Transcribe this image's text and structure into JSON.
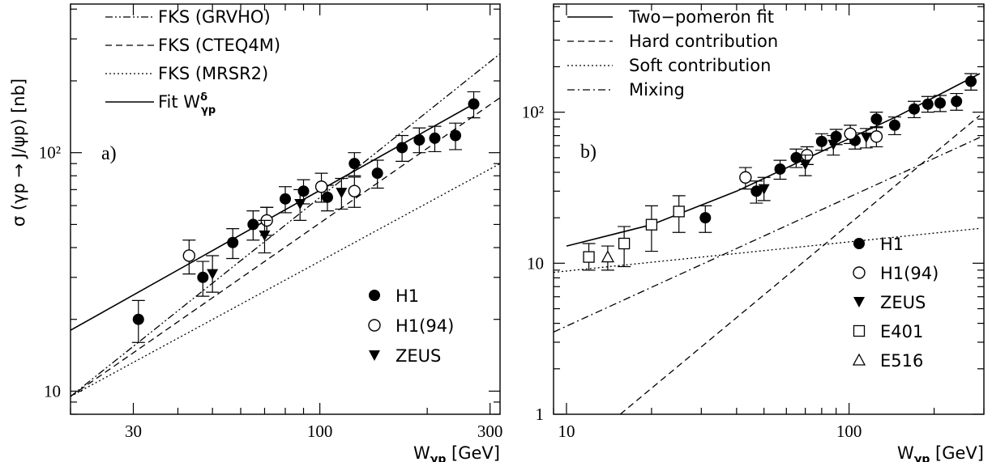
{
  "chart_data": [
    {
      "type": "scatter",
      "panel_label": "a)",
      "xlabel": "W",
      "xlabel_sub": "γp",
      "xlabel_unit": "[GeV]",
      "ylabel": "σ (γp → J/ψp) [nb]",
      "x_scale": "log",
      "y_scale": "log",
      "xlim": [
        20,
        320
      ],
      "ylim": [
        8,
        420
      ],
      "x_ticks": [
        30,
        100,
        300
      ],
      "x_tick_labels": [
        "30",
        "100",
        "300"
      ],
      "y_ticks": [
        10,
        100
      ],
      "y_tick_labels": [
        "10",
        "10²"
      ],
      "legend_position": "top-left and bottom-right",
      "curve_legend": [
        {
          "key": "grv",
          "label": "FKS (GRVHO)",
          "style": "dash-dot-dot"
        },
        {
          "key": "cteq",
          "label": "FKS (CTEQ4M)",
          "style": "dashed"
        },
        {
          "key": "mrs",
          "label": "FKS (MRSR2)",
          "style": "dotted"
        },
        {
          "key": "fit",
          "label": "Fit W",
          "sup": "δ",
          "sub": "γp",
          "style": "solid"
        }
      ],
      "curves": [
        {
          "key": "fit",
          "style": "solid",
          "points": [
            [
              20,
              18
            ],
            [
              270,
              160
            ]
          ]
        },
        {
          "key": "grv",
          "style": "dash-dot-dot",
          "points": [
            [
              20,
              9.5
            ],
            [
              320,
              260
            ]
          ]
        },
        {
          "key": "cteq",
          "style": "dashed",
          "points": [
            [
              20,
              9.5
            ],
            [
              320,
              170
            ]
          ]
        },
        {
          "key": "mrs",
          "style": "dotted",
          "points": [
            [
              20,
              9.5
            ],
            [
              320,
              90
            ]
          ]
        }
      ],
      "marker_legend": [
        {
          "label": "H1",
          "marker": "filled-circle"
        },
        {
          "label": "H1(94)",
          "marker": "open-circle"
        },
        {
          "label": "ZEUS",
          "marker": "filled-triangle-down"
        }
      ],
      "series": [
        {
          "name": "H1",
          "marker": "filled-circle",
          "points": [
            [
              31,
              20,
              16,
              24
            ],
            [
              47,
              30,
              25,
              35
            ],
            [
              57,
              42,
              36,
              48
            ],
            [
              65,
              50,
              43,
              57
            ],
            [
              71,
              52,
              45,
              59
            ],
            [
              80,
              64,
              56,
              72
            ],
            [
              90,
              69,
              61,
              77
            ],
            [
              105,
              65,
              57,
              73
            ],
            [
              125,
              90,
              80,
              100
            ],
            [
              145,
              82,
              71,
              93
            ],
            [
              170,
              105,
              92,
              118
            ],
            [
              190,
              113,
              100,
              127
            ],
            [
              210,
              115,
              101,
              129
            ],
            [
              240,
              118,
              103,
              133
            ],
            [
              270,
              160,
              140,
              180
            ]
          ]
        },
        {
          "name": "H1(94)",
          "marker": "open-circle",
          "points": [
            [
              43,
              37,
              31,
              43
            ],
            [
              71,
              52,
              45,
              59
            ],
            [
              101,
              72,
              62,
              82
            ],
            [
              125,
              69,
              59,
              79
            ]
          ]
        },
        {
          "name": "ZEUS",
          "marker": "filled-triangle-down",
          "points": [
            [
              50,
              31,
              26,
              37
            ],
            [
              70,
              45,
              38,
              52
            ],
            [
              88,
              61,
              52,
              70
            ],
            [
              115,
              68,
              58,
              78
            ]
          ]
        }
      ]
    },
    {
      "type": "scatter",
      "panel_label": "b)",
      "xlabel": "W",
      "xlabel_sub": "γp",
      "xlabel_unit": "[GeV]",
      "ylabel": "",
      "x_scale": "log",
      "y_scale": "log",
      "xlim": [
        9,
        300
      ],
      "ylim": [
        1,
        520
      ],
      "x_ticks": [
        10,
        100
      ],
      "x_tick_labels": [
        "10",
        "100"
      ],
      "y_ticks": [
        1,
        10,
        100
      ],
      "y_tick_labels": [
        "1",
        "10",
        "10²"
      ],
      "legend_position": "top-left and bottom-right",
      "curve_legend": [
        {
          "key": "total",
          "label": "Two−pomeron fit",
          "style": "solid"
        },
        {
          "key": "hard",
          "label": "Hard contribution",
          "style": "dashed"
        },
        {
          "key": "soft",
          "label": "Soft contribution",
          "style": "dotted"
        },
        {
          "key": "mix",
          "label": "Mixing",
          "style": "dash-dot"
        }
      ],
      "curves": [
        {
          "key": "total",
          "style": "solid",
          "points": [
            [
              10,
              13
            ],
            [
              20,
              18
            ],
            [
              40,
              30
            ],
            [
              80,
              55
            ],
            [
              150,
              95
            ],
            [
              290,
              180
            ]
          ]
        },
        {
          "key": "hard",
          "style": "dashed",
          "points": [
            [
              15.5,
              1
            ],
            [
              290,
              95
            ]
          ]
        },
        {
          "key": "soft",
          "style": "dotted",
          "points": [
            [
              9,
              8.7
            ],
            [
              290,
              17
            ]
          ]
        },
        {
          "key": "mix",
          "style": "dash-dot",
          "points": [
            [
              9,
              3.5
            ],
            [
              290,
              68
            ]
          ]
        }
      ],
      "marker_legend": [
        {
          "label": "H1",
          "marker": "filled-circle"
        },
        {
          "label": "H1(94)",
          "marker": "open-circle"
        },
        {
          "label": "ZEUS",
          "marker": "filled-triangle-down"
        },
        {
          "label": "E401",
          "marker": "open-square"
        },
        {
          "label": "E516",
          "marker": "open-triangle-up"
        }
      ],
      "series": [
        {
          "name": "H1",
          "marker": "filled-circle",
          "points": [
            [
              31,
              20,
              16,
              24
            ],
            [
              47,
              30,
              25,
              35
            ],
            [
              57,
              42,
              36,
              48
            ],
            [
              65,
              50,
              43,
              57
            ],
            [
              71,
              52,
              45,
              59
            ],
            [
              80,
              64,
              56,
              72
            ],
            [
              90,
              69,
              61,
              77
            ],
            [
              105,
              65,
              57,
              73
            ],
            [
              125,
              90,
              80,
              100
            ],
            [
              145,
              82,
              71,
              93
            ],
            [
              170,
              105,
              92,
              118
            ],
            [
              190,
              113,
              100,
              127
            ],
            [
              210,
              115,
              101,
              129
            ],
            [
              240,
              118,
              103,
              133
            ],
            [
              270,
              160,
              140,
              180
            ]
          ]
        },
        {
          "name": "H1(94)",
          "marker": "open-circle",
          "points": [
            [
              43,
              37,
              31,
              43
            ],
            [
              71,
              52,
              45,
              59
            ],
            [
              101,
              72,
              62,
              82
            ],
            [
              125,
              69,
              59,
              79
            ]
          ]
        },
        {
          "name": "ZEUS",
          "marker": "filled-triangle-down",
          "points": [
            [
              50,
              31,
              26,
              37
            ],
            [
              70,
              45,
              38,
              52
            ],
            [
              88,
              61,
              52,
              70
            ],
            [
              115,
              68,
              58,
              78
            ]
          ]
        },
        {
          "name": "E401",
          "marker": "open-square",
          "points": [
            [
              12,
              11,
              9,
              13.5
            ],
            [
              16,
              13.5,
              9.5,
              17.5
            ],
            [
              20,
              18,
              12,
              24
            ],
            [
              25,
              22,
              16,
              28
            ]
          ]
        },
        {
          "name": "E516",
          "marker": "open-triangle-up",
          "points": [
            [
              14,
              11,
              9,
              13
            ]
          ]
        }
      ]
    }
  ]
}
